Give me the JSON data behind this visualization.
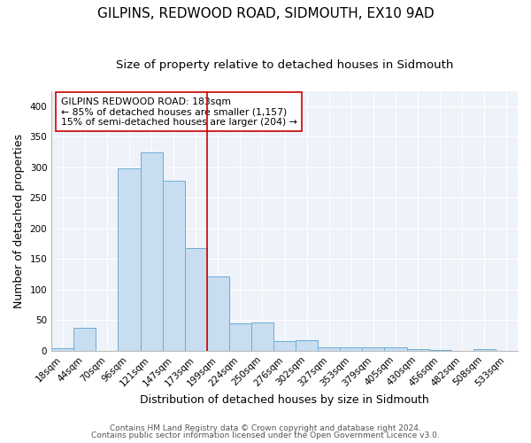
{
  "title": "GILPINS, REDWOOD ROAD, SIDMOUTH, EX10 9AD",
  "subtitle": "Size of property relative to detached houses in Sidmouth",
  "xlabel": "Distribution of detached houses by size in Sidmouth",
  "ylabel": "Number of detached properties",
  "footer1": "Contains HM Land Registry data © Crown copyright and database right 2024.",
  "footer2": "Contains public sector information licensed under the Open Government Licence v3.0.",
  "bin_labels": [
    "18sqm",
    "44sqm",
    "70sqm",
    "96sqm",
    "121sqm",
    "147sqm",
    "173sqm",
    "199sqm",
    "224sqm",
    "250sqm",
    "276sqm",
    "302sqm",
    "327sqm",
    "353sqm",
    "379sqm",
    "405sqm",
    "430sqm",
    "456sqm",
    "482sqm",
    "508sqm",
    "533sqm"
  ],
  "bar_heights": [
    4,
    37,
    0,
    298,
    325,
    278,
    168,
    121,
    45,
    46,
    15,
    17,
    5,
    6,
    5,
    6,
    2,
    1,
    0,
    3,
    0
  ],
  "bar_color": "#c9ddf0",
  "bar_edge_color": "#6aaed6",
  "vline_color": "#cc0000",
  "annotation_text": "GILPINS REDWOOD ROAD: 183sqm\n← 85% of detached houses are smaller (1,157)\n15% of semi-detached houses are larger (204) →",
  "annotation_box_color": "#ffffff",
  "annotation_box_edge": "#cc0000",
  "ylim": [
    0,
    425
  ],
  "yticks": [
    0,
    50,
    100,
    150,
    200,
    250,
    300,
    350,
    400
  ],
  "fig_background_color": "#ffffff",
  "axes_background_color": "#eef2f9",
  "grid_color": "#ffffff",
  "title_fontsize": 11,
  "subtitle_fontsize": 9.5,
  "axis_label_fontsize": 9,
  "tick_fontsize": 7.5,
  "footer_fontsize": 6.5,
  "annotation_fontsize": 7.8
}
